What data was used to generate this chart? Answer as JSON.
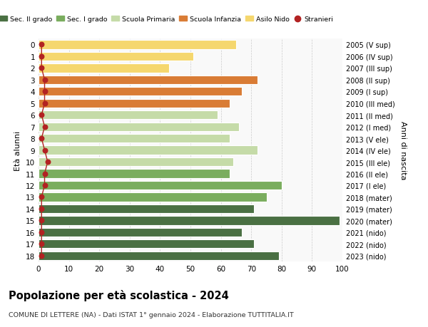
{
  "ages": [
    18,
    17,
    16,
    15,
    14,
    13,
    12,
    11,
    10,
    9,
    8,
    7,
    6,
    5,
    4,
    3,
    2,
    1,
    0
  ],
  "years": [
    "2005 (V sup)",
    "2006 (IV sup)",
    "2007 (III sup)",
    "2008 (II sup)",
    "2009 (I sup)",
    "2010 (III med)",
    "2011 (II med)",
    "2012 (I med)",
    "2013 (V ele)",
    "2014 (IV ele)",
    "2015 (III ele)",
    "2016 (II ele)",
    "2017 (I ele)",
    "2018 (mater)",
    "2019 (mater)",
    "2020 (mater)",
    "2021 (nido)",
    "2022 (nido)",
    "2023 (nido)"
  ],
  "values": [
    79,
    71,
    67,
    99,
    71,
    75,
    80,
    63,
    64,
    72,
    63,
    66,
    59,
    63,
    67,
    72,
    43,
    51,
    65
  ],
  "stranieri": [
    1,
    1,
    1,
    1,
    1,
    1,
    2,
    2,
    3,
    2,
    1,
    2,
    1,
    2,
    2,
    2,
    1,
    1,
    1
  ],
  "bar_colors": [
    "#4a7043",
    "#4a7043",
    "#4a7043",
    "#4a7043",
    "#4a7043",
    "#7aad5e",
    "#7aad5e",
    "#7aad5e",
    "#c5dba8",
    "#c5dba8",
    "#c5dba8",
    "#c5dba8",
    "#c5dba8",
    "#d97c35",
    "#d97c35",
    "#d97c35",
    "#f5d76e",
    "#f5d76e",
    "#f5d76e"
  ],
  "legend_labels": [
    "Sec. II grado",
    "Sec. I grado",
    "Scuola Primaria",
    "Scuola Infanzia",
    "Asilo Nido",
    "Stranieri"
  ],
  "legend_colors": [
    "#4a7043",
    "#7aad5e",
    "#c5dba8",
    "#d97c35",
    "#f5d76e",
    "#b22222"
  ],
  "title": "Popolazione per età scolastica - 2024",
  "subtitle": "COMUNE DI LETTERE (NA) - Dati ISTAT 1° gennaio 2024 - Elaborazione TUTTITALIA.IT",
  "ylabel_left": "Età alunni",
  "ylabel_right": "Anni di nascita",
  "xlim": [
    0,
    100
  ],
  "xticks": [
    0,
    10,
    20,
    30,
    40,
    50,
    60,
    70,
    80,
    90,
    100
  ],
  "stranieri_color": "#b22222",
  "bg_color": "#f9f9f9",
  "bar_bg_color": "#ffffff"
}
